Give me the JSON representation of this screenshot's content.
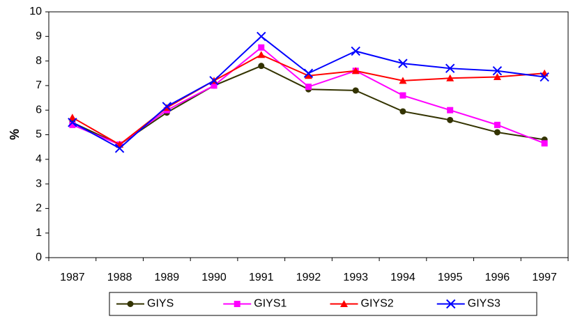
{
  "chart_data": {
    "type": "line",
    "y_label": "%",
    "categories": [
      "1987",
      "1988",
      "1989",
      "1990",
      "1991",
      "1992",
      "1993",
      "1994",
      "1995",
      "1996",
      "1997"
    ],
    "series": [
      {
        "name": "GIYS",
        "color": "#333300",
        "marker": "circle",
        "values": [
          5.5,
          4.6,
          5.9,
          7.0,
          7.8,
          6.85,
          6.8,
          5.95,
          5.6,
          5.1,
          4.8
        ]
      },
      {
        "name": "GIYS1",
        "color": "#ff00ff",
        "marker": "square",
        "values": [
          5.4,
          4.6,
          6.0,
          7.0,
          8.55,
          6.95,
          7.6,
          6.6,
          6.0,
          5.4,
          4.65
        ]
      },
      {
        "name": "GIYS2",
        "color": "#ff0000",
        "marker": "triangle",
        "values": [
          5.7,
          4.6,
          6.1,
          7.2,
          8.25,
          7.4,
          7.6,
          7.2,
          7.3,
          7.35,
          7.5
        ]
      },
      {
        "name": "GIYS3",
        "color": "#0000ff",
        "marker": "x",
        "values": [
          5.5,
          4.45,
          6.15,
          7.2,
          9.0,
          7.5,
          8.4,
          7.9,
          7.7,
          7.6,
          7.35
        ]
      }
    ],
    "ylim": [
      0,
      10
    ],
    "yticks": [
      0,
      1,
      2,
      3,
      4,
      5,
      6,
      7,
      8,
      9,
      10
    ],
    "legend": "bottom"
  }
}
